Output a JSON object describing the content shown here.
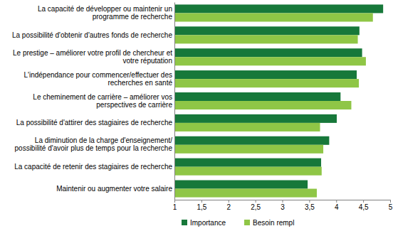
{
  "chart_data": {
    "type": "bar",
    "orientation": "horizontal",
    "grid": false,
    "legend": "bottom",
    "categories": [
      "La capacité de développer ou maintenir un programme de recherche",
      "La possibilité d'obtenir d'autres fonds de recherche",
      "Le prestige – améliorer votre profil de chercheur et votre réputation",
      "L'indépendance pour commencer/effectuer des recherches en santé",
      "Le cheminement de carrière – améliorer vos perspectives de carrière",
      "La possibilité d'attirer des stagiaires de recherche",
      "La diminution de la charge d'enseignement/ possibilité d'avoir plus de temps pour la recherche",
      "La capacité de retenir des stagiaires de recherche",
      "Maintenir ou augmenter votre salaire"
    ],
    "series": [
      {
        "name": "Importance",
        "color": "#17783a",
        "values": [
          4.87,
          4.43,
          4.48,
          4.38,
          4.08,
          4.01,
          3.87,
          3.72,
          3.47
        ]
      },
      {
        "name": "Besoin rempl",
        "color": "#8fc646",
        "values": [
          4.68,
          4.4,
          4.55,
          4.42,
          4.28,
          3.7,
          3.76,
          3.73,
          3.64
        ]
      }
    ],
    "xlim": [
      1,
      5
    ],
    "xticks": [
      1,
      {
        "value": 1.5,
        "label": "1,5"
      },
      2,
      {
        "value": 2.5,
        "label": "2,5"
      },
      3,
      {
        "value": 3.5,
        "label": "3,5"
      },
      4,
      {
        "value": 4.5,
        "label": "4,5"
      },
      5
    ]
  }
}
